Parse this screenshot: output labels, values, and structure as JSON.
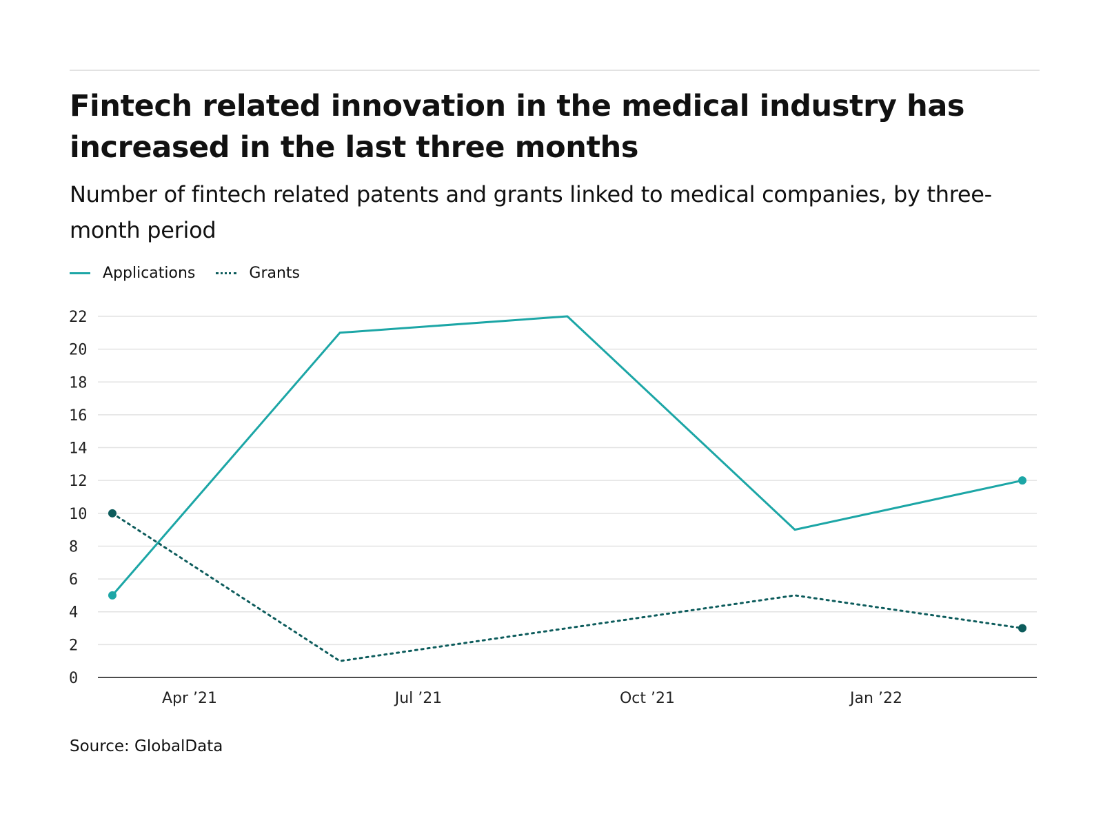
{
  "header": {
    "title": "Fintech related innovation in the medical industry has increased in the last three months",
    "subtitle": "Number of fintech related patents and grants linked to medical companies, by three-month period"
  },
  "legend": {
    "applications_label": "Applications",
    "grants_label": "Grants"
  },
  "footer": {
    "source": "Source: GlobalData"
  },
  "colors": {
    "applications": "#1ca6a6",
    "grants": "#0d5c5c",
    "gridline": "#e2e2e2",
    "axis": "#111111"
  },
  "chart_data": {
    "type": "line",
    "title": "Fintech related innovation in the medical industry has increased in the last three months",
    "subtitle": "Number of fintech related patents and grants linked to medical companies, by three-month period",
    "xlabel": "",
    "ylabel": "",
    "x_ticks": [
      "Apr ’21",
      "Jul ’21",
      "Oct ’21",
      "Jan ’22"
    ],
    "y_ticks": [
      0,
      2,
      4,
      6,
      8,
      10,
      12,
      14,
      16,
      18,
      20,
      22
    ],
    "ylim": [
      0,
      22
    ],
    "grid": true,
    "legend_position": "top-left",
    "series": [
      {
        "name": "Applications",
        "style": "solid",
        "values": [
          5,
          21,
          22,
          9,
          12
        ]
      },
      {
        "name": "Grants",
        "style": "dotted",
        "values": [
          10,
          1,
          3,
          5,
          3
        ]
      }
    ],
    "source": "Source: GlobalData"
  }
}
